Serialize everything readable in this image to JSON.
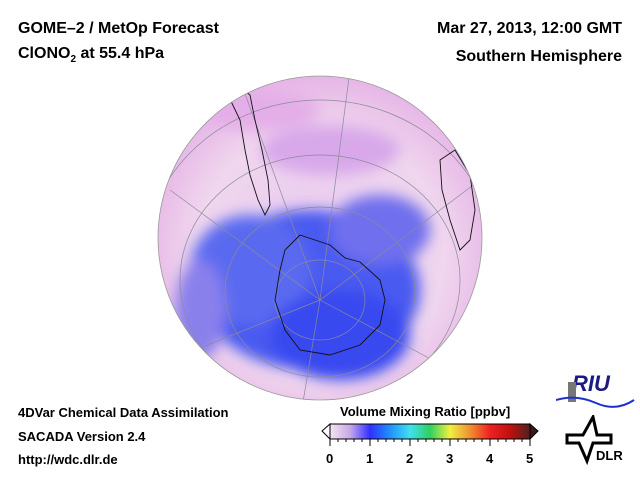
{
  "header": {
    "title_line1": "GOME–2 / MetOp Forecast",
    "title_line2_prefix": "ClONO",
    "title_line2_sub": "2",
    "title_line2_suffix": " at 55.4 hPa",
    "date": "Mar 27, 2013, 12:00 GMT",
    "region": "Southern Hemisphere"
  },
  "footer": {
    "line1": "4DVar Chemical Data Assimilation",
    "line2": "SACADA Version 2.4",
    "line3": "http://wdc.dlr.de"
  },
  "colorbar": {
    "title": "Volume Mixing Ratio [ppbv]",
    "ticks": [
      "0",
      "1",
      "2",
      "3",
      "4",
      "5"
    ],
    "range": [
      0,
      5
    ],
    "colors": [
      "#f4e6ee",
      "#c8a8e8",
      "#3030ff",
      "#2090ff",
      "#40e0f0",
      "#30d060",
      "#f0f040",
      "#f09030",
      "#f02020",
      "#c01010",
      "#502020"
    ]
  },
  "logos": {
    "riu": "RIU",
    "dlr": "DLR"
  }
}
